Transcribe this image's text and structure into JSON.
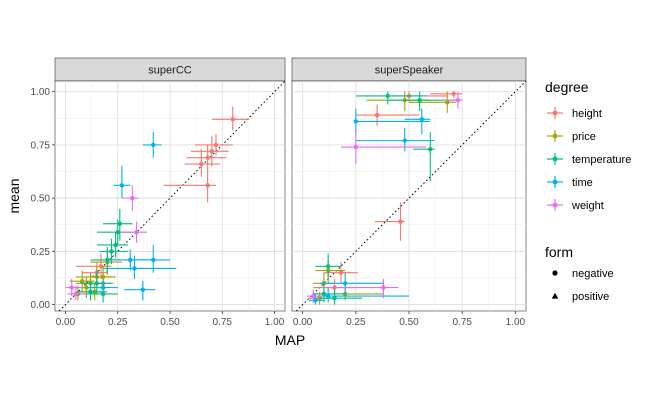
{
  "chart_data": {
    "type": "scatter",
    "xlabel": "MAP",
    "ylabel": "mean",
    "xlim": [
      -0.05,
      1.05
    ],
    "ylim": [
      -0.03,
      1.05
    ],
    "xticks": [
      0,
      0.25,
      0.5,
      0.75,
      1
    ],
    "yticks": [
      0,
      0.25,
      0.5,
      0.75,
      1
    ],
    "xtick_labels": [
      "0.00",
      "0.25",
      "0.50",
      "0.75",
      "1.00"
    ],
    "ytick_labels": [
      "0.00",
      "0.25",
      "0.50",
      "0.75",
      "1.00"
    ],
    "reference_line": "y = x (dotted)",
    "grid": true,
    "panels": [
      "superCC",
      "superSpeaker"
    ],
    "legend": {
      "position": "right",
      "color_title": "degree",
      "color_items": [
        {
          "key": "height",
          "color": "#F8766D"
        },
        {
          "key": "price",
          "color": "#A3A500"
        },
        {
          "key": "temperature",
          "color": "#00BF7D"
        },
        {
          "key": "time",
          "color": "#00B0F6"
        },
        {
          "key": "weight",
          "color": "#E76BF3"
        }
      ],
      "shape_title": "form",
      "shape_items": [
        {
          "key": "negative",
          "shape": "circle"
        },
        {
          "key": "positive",
          "shape": "triangle"
        }
      ]
    },
    "series": [
      {
        "panel": 0,
        "degree": "height",
        "points": [
          {
            "x": 0.8,
            "y": 0.87,
            "x0": 0.7,
            "x1": 0.88,
            "y0": 0.82,
            "y1": 0.93
          },
          {
            "x": 0.72,
            "y": 0.75,
            "x0": 0.62,
            "x1": 0.8,
            "y0": 0.7,
            "y1": 0.8
          },
          {
            "x": 0.7,
            "y": 0.72,
            "x0": 0.6,
            "x1": 0.78,
            "y0": 0.65,
            "y1": 0.79
          },
          {
            "x": 0.68,
            "y": 0.69,
            "x0": 0.58,
            "x1": 0.77,
            "y0": 0.63,
            "y1": 0.75
          },
          {
            "x": 0.65,
            "y": 0.66,
            "x0": 0.57,
            "x1": 0.74,
            "y0": 0.6,
            "y1": 0.73
          },
          {
            "x": 0.68,
            "y": 0.56,
            "x0": 0.47,
            "x1": 0.72,
            "y0": 0.48,
            "y1": 0.64
          },
          {
            "x": 0.17,
            "y": 0.18,
            "x0": 0.05,
            "x1": 0.22,
            "y0": 0.12,
            "y1": 0.24
          },
          {
            "x": 0.15,
            "y": 0.15,
            "x0": 0.08,
            "x1": 0.2,
            "y0": 0.1,
            "y1": 0.2
          },
          {
            "x": 0.18,
            "y": 0.1,
            "x0": 0.12,
            "x1": 0.23,
            "y0": 0.05,
            "y1": 0.15
          }
        ]
      },
      {
        "panel": 0,
        "degree": "price",
        "points": [
          {
            "x": 0.15,
            "y": 0.13,
            "x0": 0.05,
            "x1": 0.22,
            "y0": 0.08,
            "y1": 0.18
          },
          {
            "x": 0.12,
            "y": 0.1,
            "x0": 0.05,
            "x1": 0.18,
            "y0": 0.05,
            "y1": 0.15
          },
          {
            "x": 0.1,
            "y": 0.08,
            "x0": 0.03,
            "x1": 0.16,
            "y0": 0.03,
            "y1": 0.13
          },
          {
            "x": 0.08,
            "y": 0.11,
            "x0": 0.02,
            "x1": 0.14,
            "y0": 0.06,
            "y1": 0.16
          },
          {
            "x": 0.2,
            "y": 0.2,
            "x0": 0.12,
            "x1": 0.27,
            "y0": 0.14,
            "y1": 0.26
          },
          {
            "x": 0.18,
            "y": 0.13,
            "x0": 0.1,
            "x1": 0.24,
            "y0": 0.08,
            "y1": 0.18
          },
          {
            "x": 0.14,
            "y": 0.06,
            "x0": 0.06,
            "x1": 0.2,
            "y0": 0.02,
            "y1": 0.1
          },
          {
            "x": 0.06,
            "y": 0.05,
            "x0": 0.02,
            "x1": 0.12,
            "y0": 0.02,
            "y1": 0.09
          }
        ]
      },
      {
        "panel": 0,
        "degree": "temperature",
        "points": [
          {
            "x": 0.26,
            "y": 0.38,
            "x0": 0.18,
            "x1": 0.32,
            "y0": 0.3,
            "y1": 0.45
          },
          {
            "x": 0.24,
            "y": 0.28,
            "x0": 0.15,
            "x1": 0.3,
            "y0": 0.22,
            "y1": 0.34
          },
          {
            "x": 0.22,
            "y": 0.25,
            "x0": 0.16,
            "x1": 0.3,
            "y0": 0.19,
            "y1": 0.31
          },
          {
            "x": 0.2,
            "y": 0.21,
            "x0": 0.12,
            "x1": 0.27,
            "y0": 0.15,
            "y1": 0.27
          },
          {
            "x": 0.15,
            "y": 0.1,
            "x0": 0.07,
            "x1": 0.22,
            "y0": 0.05,
            "y1": 0.16
          },
          {
            "x": 0.12,
            "y": 0.06,
            "x0": 0.05,
            "x1": 0.19,
            "y0": 0.02,
            "y1": 0.11
          },
          {
            "x": 0.18,
            "y": 0.05,
            "x0": 0.1,
            "x1": 0.25,
            "y0": 0.01,
            "y1": 0.09
          },
          {
            "x": 0.25,
            "y": 0.34,
            "x0": 0.15,
            "x1": 0.32,
            "y0": 0.28,
            "y1": 0.4
          }
        ]
      },
      {
        "panel": 0,
        "degree": "time",
        "points": [
          {
            "x": 0.42,
            "y": 0.75,
            "x0": 0.37,
            "x1": 0.46,
            "y0": 0.69,
            "y1": 0.81
          },
          {
            "x": 0.27,
            "y": 0.56,
            "x0": 0.23,
            "x1": 0.31,
            "y0": 0.5,
            "y1": 0.65
          },
          {
            "x": 0.42,
            "y": 0.21,
            "x0": 0.3,
            "x1": 0.5,
            "y0": 0.15,
            "y1": 0.28
          },
          {
            "x": 0.33,
            "y": 0.17,
            "x0": 0.18,
            "x1": 0.53,
            "y0": 0.12,
            "y1": 0.23
          },
          {
            "x": 0.31,
            "y": 0.21,
            "x0": 0.2,
            "x1": 0.44,
            "y0": 0.16,
            "y1": 0.26
          },
          {
            "x": 0.37,
            "y": 0.07,
            "x0": 0.28,
            "x1": 0.43,
            "y0": 0.02,
            "y1": 0.11
          },
          {
            "x": 0.18,
            "y": 0.08,
            "x0": 0.1,
            "x1": 0.25,
            "y0": 0.04,
            "y1": 0.12
          }
        ]
      },
      {
        "panel": 0,
        "degree": "weight",
        "points": [
          {
            "x": 0.32,
            "y": 0.5,
            "x0": 0.27,
            "x1": 0.35,
            "y0": 0.44,
            "y1": 0.56
          },
          {
            "x": 0.34,
            "y": 0.34,
            "x0": 0.26,
            "x1": 0.39,
            "y0": 0.29,
            "y1": 0.39
          },
          {
            "x": 0.03,
            "y": 0.08,
            "x0": 0.0,
            "x1": 0.08,
            "y0": 0.04,
            "y1": 0.12
          },
          {
            "x": 0.05,
            "y": 0.05,
            "x0": 0.01,
            "x1": 0.1,
            "y0": 0.02,
            "y1": 0.09
          }
        ]
      },
      {
        "panel": 1,
        "degree": "height",
        "points": [
          {
            "x": 0.71,
            "y": 0.99,
            "x0": 0.6,
            "x1": 0.75,
            "y0": 0.97,
            "y1": 1.0
          },
          {
            "x": 0.5,
            "y": 0.98,
            "x0": 0.42,
            "x1": 0.68,
            "y0": 0.95,
            "y1": 1.0
          },
          {
            "x": 0.35,
            "y": 0.89,
            "x0": 0.25,
            "x1": 0.55,
            "y0": 0.84,
            "y1": 0.94
          },
          {
            "x": 0.46,
            "y": 0.39,
            "x0": 0.34,
            "x1": 0.48,
            "y0": 0.3,
            "y1": 0.48
          },
          {
            "x": 0.18,
            "y": 0.15,
            "x0": 0.1,
            "x1": 0.26,
            "y0": 0.1,
            "y1": 0.2
          },
          {
            "x": 0.15,
            "y": 0.08,
            "x0": 0.05,
            "x1": 0.25,
            "y0": 0.03,
            "y1": 0.12
          }
        ]
      },
      {
        "panel": 1,
        "degree": "price",
        "points": [
          {
            "x": 0.68,
            "y": 0.95,
            "x0": 0.5,
            "x1": 0.72,
            "y0": 0.9,
            "y1": 1.0
          },
          {
            "x": 0.48,
            "y": 0.96,
            "x0": 0.3,
            "x1": 0.6,
            "y0": 0.91,
            "y1": 1.0
          },
          {
            "x": 0.12,
            "y": 0.16,
            "x0": 0.06,
            "x1": 0.2,
            "y0": 0.1,
            "y1": 0.22
          },
          {
            "x": 0.1,
            "y": 0.1,
            "x0": 0.05,
            "x1": 0.15,
            "y0": 0.05,
            "y1": 0.15
          },
          {
            "x": 0.2,
            "y": 0.05,
            "x0": 0.06,
            "x1": 0.38,
            "y0": 0.02,
            "y1": 0.09
          },
          {
            "x": 0.08,
            "y": 0.03,
            "x0": 0.03,
            "x1": 0.14,
            "y0": 0.0,
            "y1": 0.06
          }
        ]
      },
      {
        "panel": 1,
        "degree": "temperature",
        "points": [
          {
            "x": 0.4,
            "y": 0.98,
            "x0": 0.25,
            "x1": 0.58,
            "y0": 0.94,
            "y1": 1.0
          },
          {
            "x": 0.55,
            "y": 0.96,
            "x0": 0.4,
            "x1": 0.72,
            "y0": 0.91,
            "y1": 1.0
          },
          {
            "x": 0.6,
            "y": 0.73,
            "x0": 0.52,
            "x1": 0.62,
            "y0": 0.58,
            "y1": 0.81
          },
          {
            "x": 0.12,
            "y": 0.18,
            "x0": 0.06,
            "x1": 0.18,
            "y0": 0.12,
            "y1": 0.24
          },
          {
            "x": 0.1,
            "y": 0.05,
            "x0": 0.05,
            "x1": 0.2,
            "y0": 0.01,
            "y1": 0.1
          },
          {
            "x": 0.15,
            "y": 0.03,
            "x0": 0.08,
            "x1": 0.28,
            "y0": 0.0,
            "y1": 0.07
          }
        ]
      },
      {
        "panel": 1,
        "degree": "time",
        "points": [
          {
            "x": 0.56,
            "y": 0.87,
            "x0": 0.48,
            "x1": 0.6,
            "y0": 0.8,
            "y1": 0.92
          },
          {
            "x": 0.25,
            "y": 0.86,
            "x0": 0.25,
            "x1": 0.6,
            "y0": 0.8,
            "y1": 0.92
          },
          {
            "x": 0.48,
            "y": 0.77,
            "x0": 0.25,
            "x1": 0.62,
            "y0": 0.72,
            "y1": 0.83
          },
          {
            "x": 0.2,
            "y": 0.1,
            "x0": 0.08,
            "x1": 0.38,
            "y0": 0.05,
            "y1": 0.15
          },
          {
            "x": 0.12,
            "y": 0.04,
            "x0": 0.05,
            "x1": 0.5,
            "y0": 0.01,
            "y1": 0.08
          },
          {
            "x": 0.06,
            "y": 0.02,
            "x0": 0.03,
            "x1": 0.1,
            "y0": 0.0,
            "y1": 0.05
          }
        ]
      },
      {
        "panel": 1,
        "degree": "weight",
        "points": [
          {
            "x": 0.73,
            "y": 0.96,
            "x0": 0.66,
            "x1": 0.75,
            "y0": 0.92,
            "y1": 1.0
          },
          {
            "x": 0.25,
            "y": 0.74,
            "x0": 0.18,
            "x1": 0.58,
            "y0": 0.66,
            "y1": 0.82
          },
          {
            "x": 0.38,
            "y": 0.08,
            "x0": 0.1,
            "x1": 0.45,
            "y0": 0.03,
            "y1": 0.12
          },
          {
            "x": 0.05,
            "y": 0.04,
            "x0": 0.02,
            "x1": 0.1,
            "y0": 0.01,
            "y1": 0.07
          }
        ]
      }
    ]
  }
}
